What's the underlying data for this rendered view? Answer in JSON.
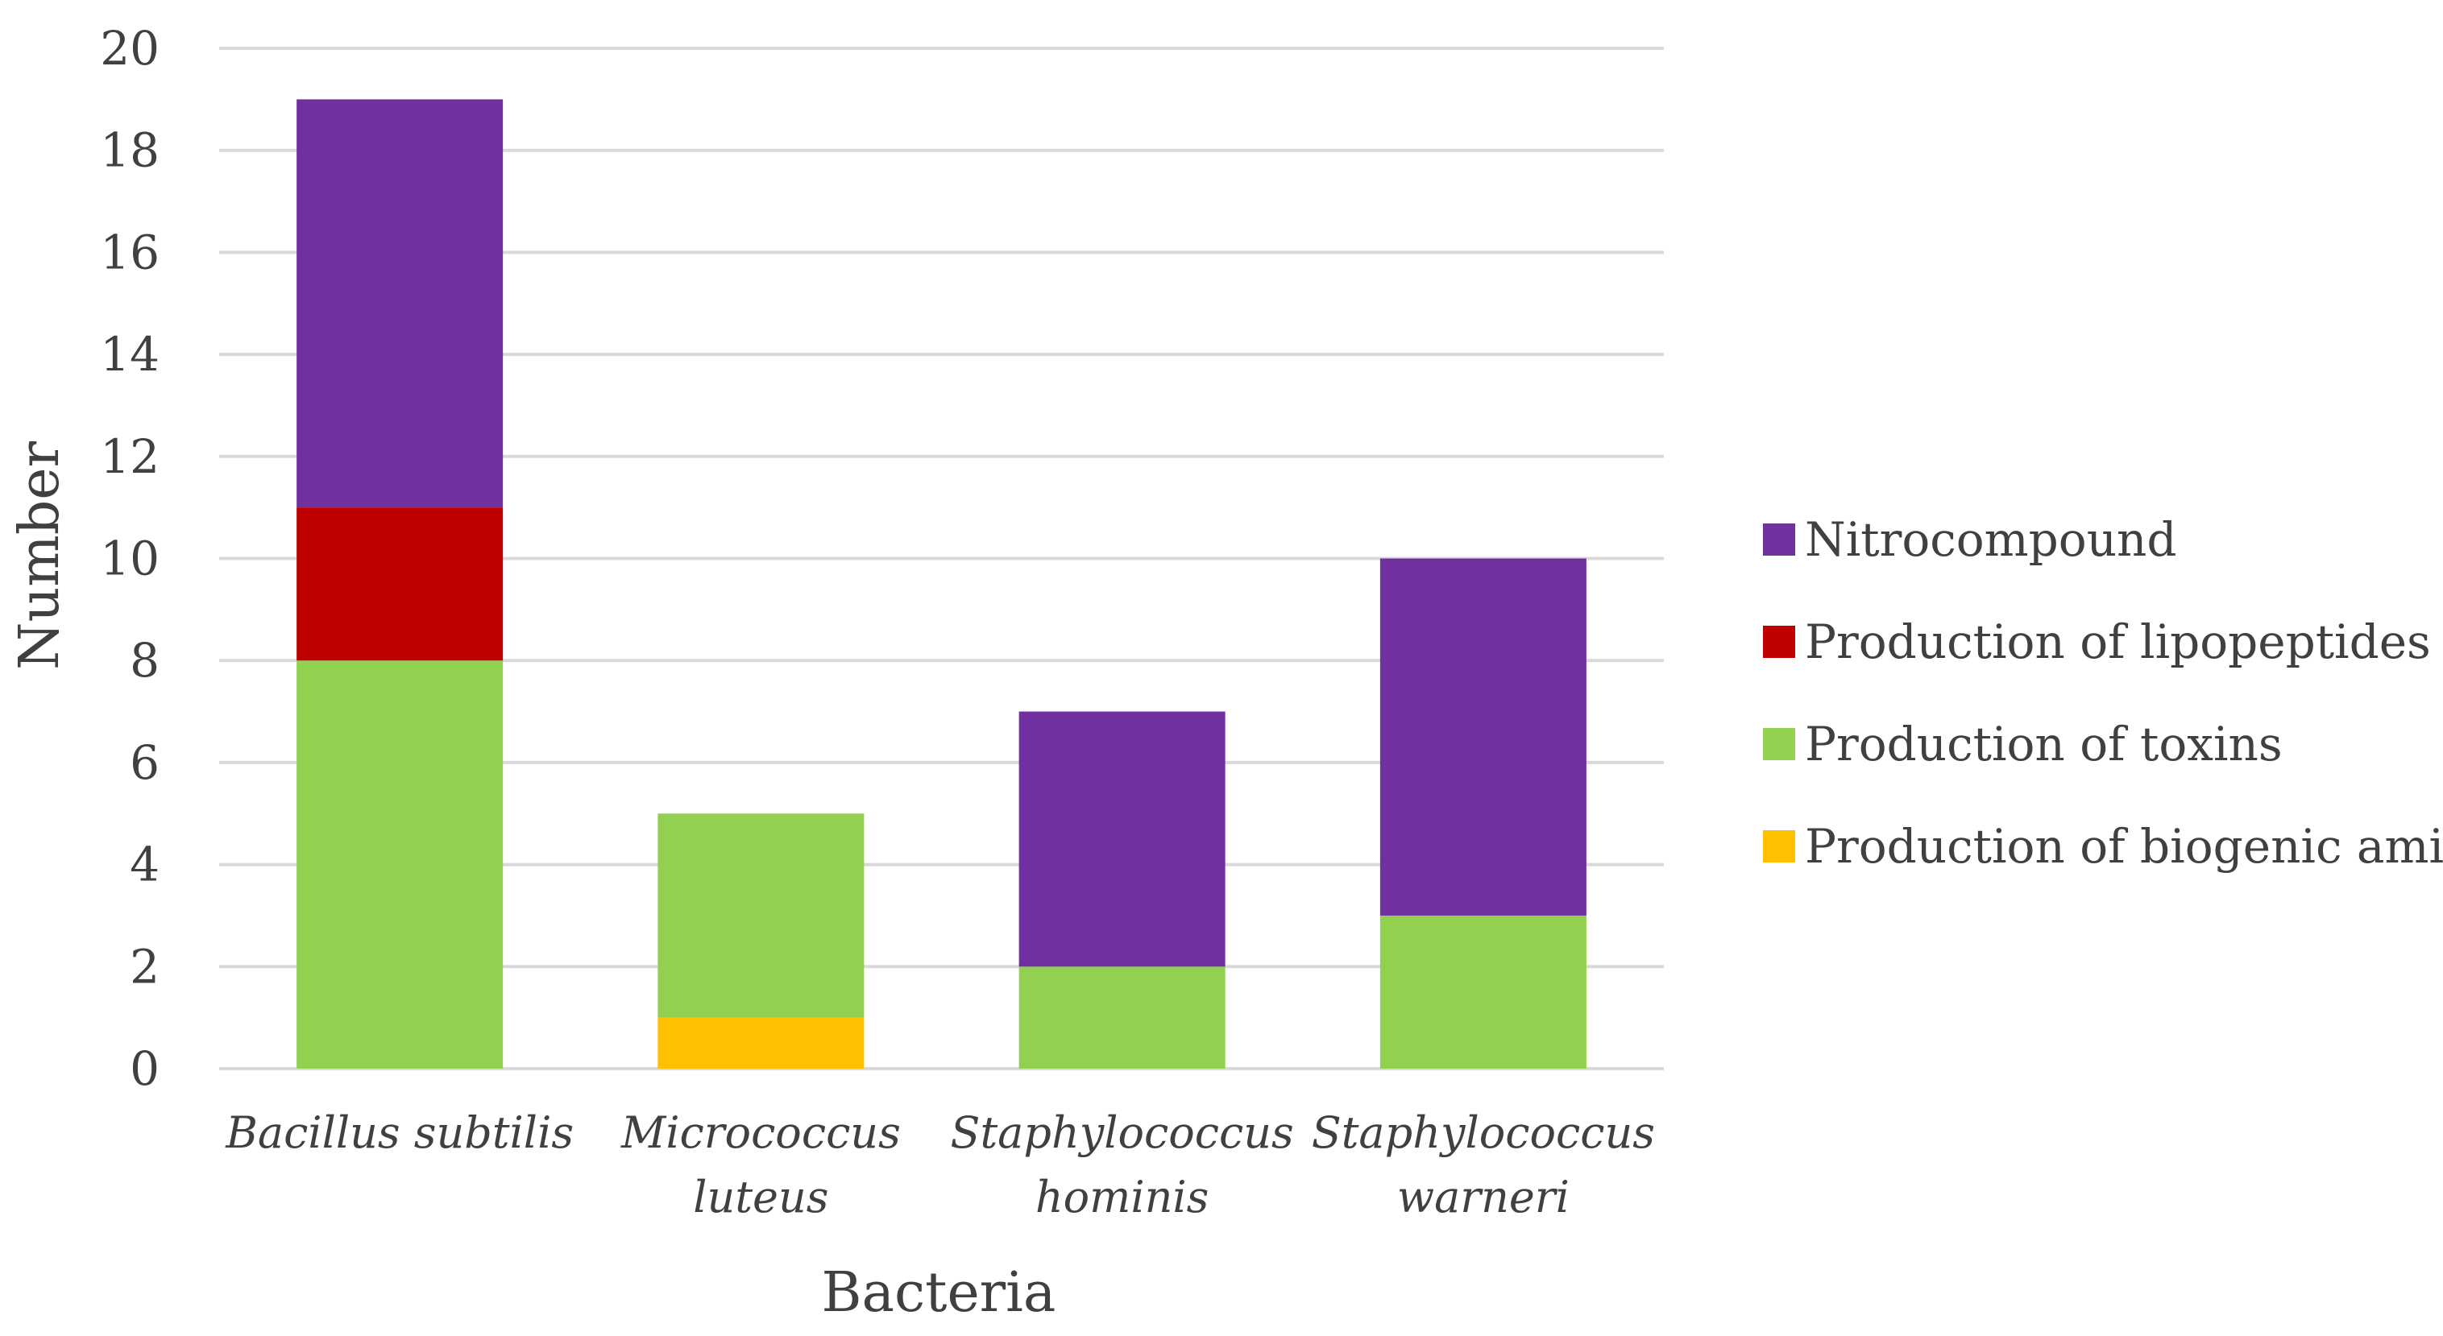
{
  "chart_data": {
    "type": "bar",
    "stacked": true,
    "title": "",
    "xlabel": "Bacteria",
    "ylabel": "Number",
    "ylim": [
      0,
      20
    ],
    "yticks": [
      "0",
      "2",
      "4",
      "6",
      "8",
      "10",
      "12",
      "14",
      "16",
      "18",
      "20"
    ],
    "grid": true,
    "legend_position": "right",
    "categories": [
      [
        "Bacillus subtilis"
      ],
      [
        "Micrococcus",
        "luteus"
      ],
      [
        "Staphylococcus",
        "hominis"
      ],
      [
        "Staphylococcus",
        "warneri"
      ]
    ],
    "series": [
      {
        "name": "Production of biogenic amines",
        "color": "#FFC000",
        "values": [
          0,
          1,
          0,
          0
        ]
      },
      {
        "name": "Production of toxins",
        "color": "#92D050",
        "values": [
          8,
          4,
          2,
          3
        ]
      },
      {
        "name": "Production of lipopeptides",
        "color": "#C00000",
        "values": [
          3,
          0,
          0,
          0
        ]
      },
      {
        "name": "Nitrocompound",
        "color": "#7030A0",
        "values": [
          8,
          0,
          5,
          7
        ]
      }
    ],
    "legend_order": [
      "Nitrocompound",
      "Production of lipopeptides",
      "Production of toxins",
      "Production of biogenic amines"
    ]
  }
}
